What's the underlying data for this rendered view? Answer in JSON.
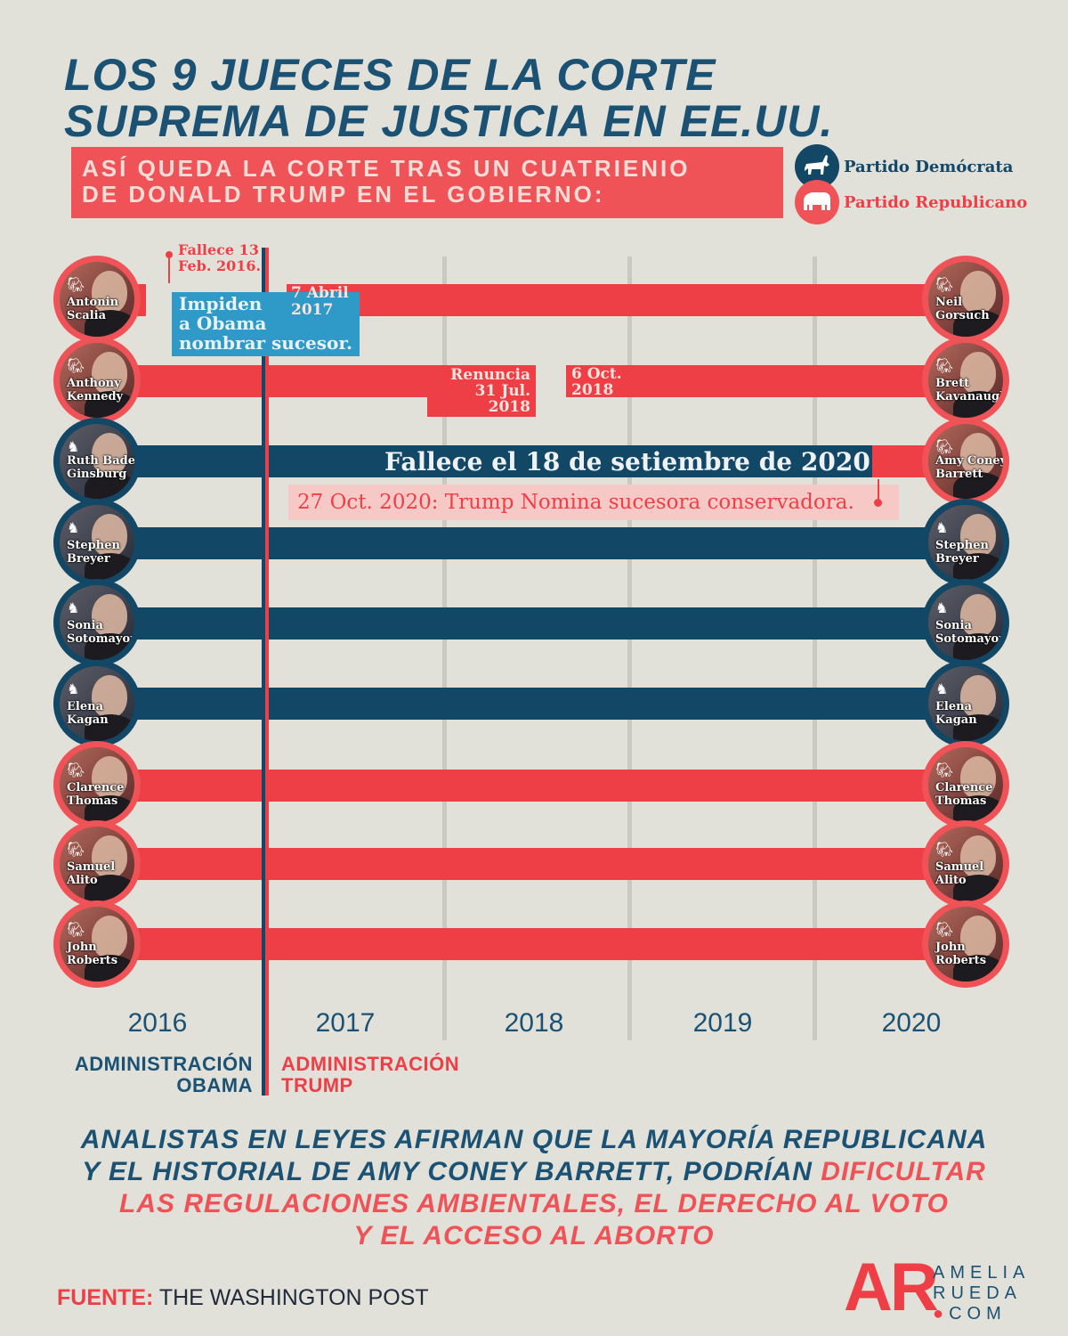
{
  "title_line1": "LOS 9 JUECES DE LA CORTE",
  "title_line2": "SUPREMA DE JUSTICIA EN EE.UU.",
  "subtitle_line1": "ASÍ QUEDA LA CORTE TRAS UN CUATRIENIO",
  "subtitle_line2": "DE DONALD TRUMP EN EL GOBIERNO:",
  "legend": {
    "dem_label": "Partido Demócrata",
    "rep_label": "Partido Republicano",
    "dem_icon": "donkey-icon",
    "rep_icon": "elephant-icon"
  },
  "colors": {
    "democrat": "#124766",
    "republican": "#ef3f46",
    "accent_blue": "#2f9ac8",
    "background": "#e1e0d9"
  },
  "years": [
    "2016",
    "2017",
    "2018",
    "2019",
    "2020"
  ],
  "admin_obama_1": "ADMINISTRACIÓN",
  "admin_obama_2": "OBAMA",
  "admin_trump_1": "ADMINISTRACIÓN",
  "admin_trump_2": "TRUMP",
  "left_justices": [
    {
      "first": "Antonin",
      "last": "Scalia",
      "party": "R"
    },
    {
      "first": "Anthony",
      "last": "Kennedy",
      "party": "R"
    },
    {
      "first": "Ruth Bader",
      "last": "Ginsburg",
      "party": "D"
    },
    {
      "first": "Stephen",
      "last": "Breyer",
      "party": "D"
    },
    {
      "first": "Sonia",
      "last": "Sotomayor",
      "party": "D"
    },
    {
      "first": "Elena",
      "last": "Kagan",
      "party": "D"
    },
    {
      "first": "Clarence",
      "last": "Thomas",
      "party": "R"
    },
    {
      "first": "Samuel",
      "last": "Alito",
      "party": "R"
    },
    {
      "first": "John",
      "last": "Roberts",
      "party": "R"
    }
  ],
  "right_justices": [
    {
      "first": "Neil",
      "last": "Gorsuch",
      "party": "R"
    },
    {
      "first": "Brett",
      "last": "Kavanaugh",
      "party": "R"
    },
    {
      "first": "Amy Coney",
      "last": "Barrett",
      "party": "R"
    },
    {
      "first": "Stephen",
      "last": "Breyer",
      "party": "D"
    },
    {
      "first": "Sonia",
      "last": "Sotomayor",
      "party": "D"
    },
    {
      "first": "Elena",
      "last": "Kagan",
      "party": "D"
    },
    {
      "first": "Clarence",
      "last": "Thomas",
      "party": "R"
    },
    {
      "first": "Samuel",
      "last": "Alito",
      "party": "R"
    },
    {
      "first": "John",
      "last": "Roberts",
      "party": "R"
    }
  ],
  "notes": {
    "scalia_death_1": "Fallece 13",
    "scalia_death_2": "Feb. 2016.",
    "blocked_1": "Impiden",
    "blocked_2": "a Obama",
    "blocked_3": "nombrar sucesor.",
    "gorsuch_1": "7 Abril",
    "gorsuch_2": "2017",
    "kennedy_1": "Renuncia",
    "kennedy_2": "31 Jul. 2018",
    "kavanaugh_1": "6 Oct.",
    "kavanaugh_2": "2018",
    "ginsburg_death": "Fallece el 18 de setiembre de 2020",
    "barrett_nomination": "27 Oct. 2020: Trump Nomina sucesora conservadora."
  },
  "bottom_text": {
    "blue_1": "ANALISTAS EN LEYES AFIRMAN QUE LA MAYORÍA REPUBLICANA",
    "blue_2": "Y EL HISTORIAL DE AMY CONEY BARRETT, PODRÍAN ",
    "red_2": "DIFICULTAR",
    "red_3": "LAS REGULACIONES AMBIENTALES, EL DERECHO AL VOTO",
    "red_4": "Y EL ACCESO AL ABORTO"
  },
  "source_label": "FUENTE:",
  "source_value": "THE WASHINGTON POST",
  "logo": {
    "mark": "AR",
    "line1": "AMELIA",
    "line2": "RUEDA",
    "line3": ".COM"
  }
}
